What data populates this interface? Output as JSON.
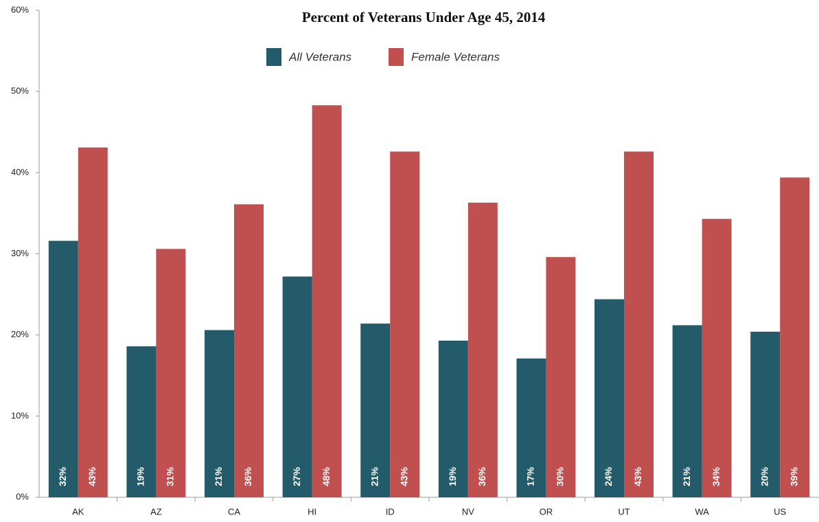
{
  "chart_data": {
    "type": "bar",
    "title": "Percent of Veterans Under Age 45, 2014",
    "categories": [
      "AK",
      "AZ",
      "CA",
      "HI",
      "ID",
      "NV",
      "OR",
      "UT",
      "WA",
      "US"
    ],
    "series": [
      {
        "name": "All Veterans",
        "color": "#245b6a",
        "values": [
          31.6,
          18.6,
          20.6,
          27.2,
          21.4,
          19.3,
          17.1,
          24.4,
          21.2,
          20.4
        ],
        "value_labels": [
          "32%",
          "19%",
          "21%",
          "27%",
          "21%",
          "19%",
          "17%",
          "24%",
          "21%",
          "20%"
        ]
      },
      {
        "name": "Female Veterans",
        "color": "#c0504f",
        "values": [
          43.1,
          30.6,
          36.1,
          48.3,
          42.6,
          36.3,
          29.6,
          42.6,
          34.3,
          39.4
        ],
        "value_labels": [
          "43%",
          "31%",
          "36%",
          "48%",
          "43%",
          "36%",
          "30%",
          "43%",
          "34%",
          "39%"
        ]
      }
    ],
    "ylim": [
      0,
      60
    ],
    "yticks": [
      {
        "value": 0,
        "label": "0%"
      },
      {
        "value": 10,
        "label": "10%"
      },
      {
        "value": 20,
        "label": "20%"
      },
      {
        "value": 30,
        "label": "30%"
      },
      {
        "value": 40,
        "label": "40%"
      },
      {
        "value": 50,
        "label": "50%"
      },
      {
        "value": 60,
        "label": "60%"
      }
    ],
    "grid": false
  }
}
